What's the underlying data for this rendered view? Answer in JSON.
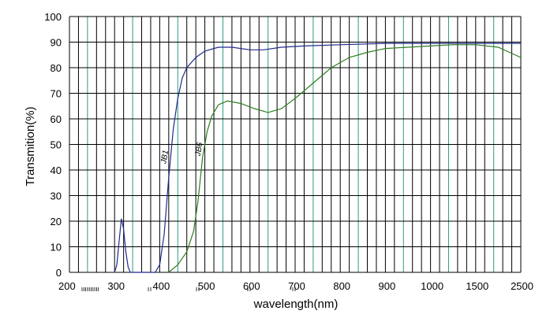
{
  "chart_data": {
    "type": "line",
    "title": "",
    "xlabel": "wavelength(nm)",
    "ylabel": "Transmition(%)",
    "ylim": [
      0,
      100
    ],
    "y_ticks": [
      "0",
      "10",
      "20",
      "30",
      "40",
      "50",
      "60",
      "70",
      "80",
      "90",
      "100"
    ],
    "x_tick_labels": [
      "200",
      "300",
      "400",
      "500",
      "600",
      "700",
      "800",
      "900",
      "1000",
      "1500",
      "2500"
    ],
    "x_tick_index": [
      0,
      1,
      2,
      3,
      4,
      5,
      6,
      7,
      8,
      9,
      10
    ],
    "x_scale": "piecewise-linear between labeled ticks (equal spacing per label)",
    "grid": true,
    "series": [
      {
        "name": "JB1",
        "color": "#1f2a8c",
        "points": [
          [
            1.0,
            0
          ],
          [
            1.05,
            3
          ],
          [
            1.1,
            12
          ],
          [
            1.15,
            21
          ],
          [
            1.2,
            17
          ],
          [
            1.25,
            8
          ],
          [
            1.3,
            2
          ],
          [
            1.35,
            0
          ],
          [
            1.9,
            0
          ],
          [
            2.0,
            3
          ],
          [
            2.1,
            15
          ],
          [
            2.2,
            37
          ],
          [
            2.3,
            56
          ],
          [
            2.4,
            68
          ],
          [
            2.5,
            76
          ],
          [
            2.6,
            80
          ],
          [
            2.8,
            84
          ],
          [
            3.0,
            86.5
          ],
          [
            3.3,
            88
          ],
          [
            3.6,
            88
          ],
          [
            4.0,
            87
          ],
          [
            4.3,
            87
          ],
          [
            4.7,
            88
          ],
          [
            5.2,
            88.5
          ],
          [
            6.0,
            89
          ],
          [
            7.0,
            89.5
          ],
          [
            8.0,
            89.5
          ],
          [
            9.0,
            89.5
          ],
          [
            10.0,
            89.5
          ]
        ]
      },
      {
        "name": "JB6",
        "color": "#2e7d1e",
        "points": [
          [
            2.2,
            0
          ],
          [
            2.4,
            3
          ],
          [
            2.6,
            8
          ],
          [
            2.75,
            16
          ],
          [
            2.85,
            28
          ],
          [
            2.95,
            45
          ],
          [
            3.05,
            55
          ],
          [
            3.15,
            61
          ],
          [
            3.3,
            65.5
          ],
          [
            3.5,
            67
          ],
          [
            3.8,
            66
          ],
          [
            4.1,
            64
          ],
          [
            4.4,
            62.5
          ],
          [
            4.7,
            64
          ],
          [
            5.0,
            68
          ],
          [
            5.4,
            74
          ],
          [
            5.8,
            80
          ],
          [
            6.2,
            84
          ],
          [
            6.6,
            86
          ],
          [
            7.0,
            87.5
          ],
          [
            7.5,
            88
          ],
          [
            8.0,
            88.5
          ],
          [
            8.5,
            89
          ],
          [
            9.0,
            89
          ],
          [
            9.5,
            88
          ],
          [
            10.0,
            84
          ]
        ]
      }
    ]
  }
}
